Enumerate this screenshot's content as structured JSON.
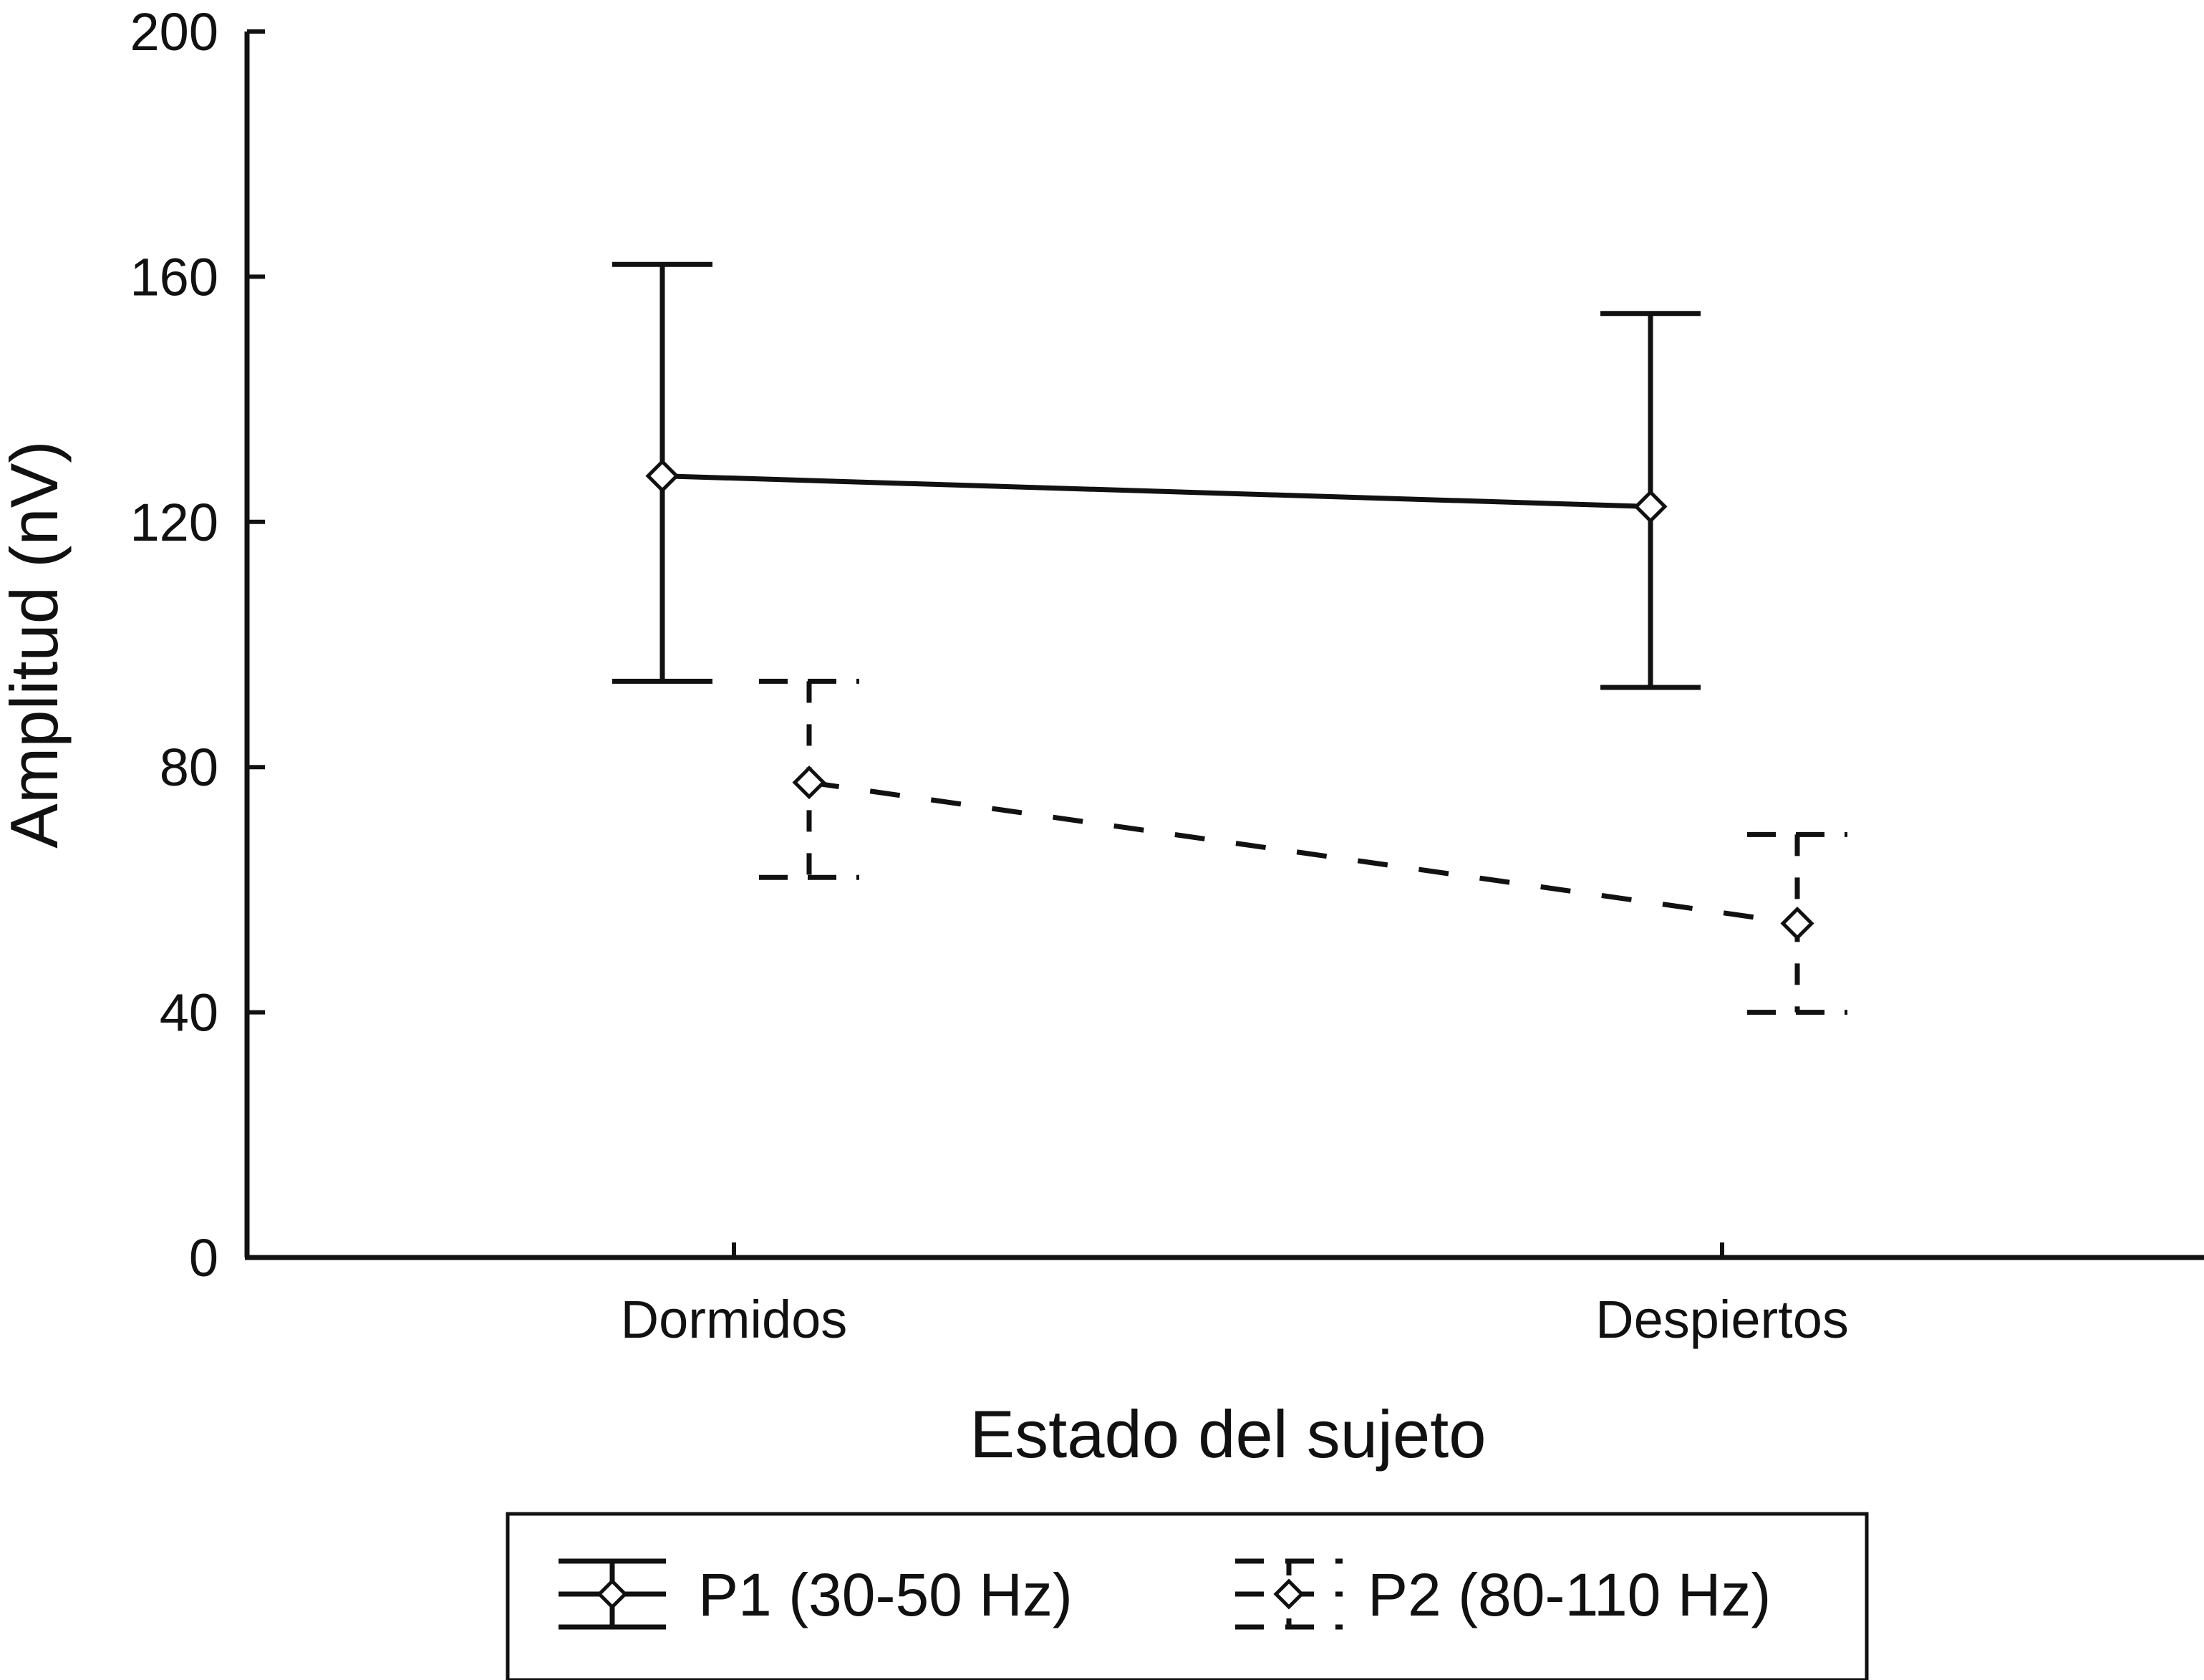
{
  "chart_data": {
    "type": "line",
    "title": "",
    "xlabel": "Estado del sujeto",
    "ylabel": "Amplitud (nV)",
    "categories": [
      "Dormidos",
      "Despiertos"
    ],
    "ylim": [
      0,
      200
    ],
    "yticks": [
      0,
      40,
      80,
      120,
      160,
      200
    ],
    "grid": false,
    "legend_position": "bottom",
    "series": [
      {
        "name": "P1 (30-50 Hz)",
        "style": "solid",
        "values": [
          127.5,
          122.5
        ],
        "upper": [
          162,
          154
        ],
        "lower": [
          94,
          93
        ],
        "color": "#111111"
      },
      {
        "name": "P2 (80-110 Hz)",
        "style": "dashed",
        "values": [
          77.5,
          54.5
        ],
        "upper": [
          94,
          69
        ],
        "lower": [
          62,
          40
        ],
        "color": "#111111"
      }
    ]
  }
}
